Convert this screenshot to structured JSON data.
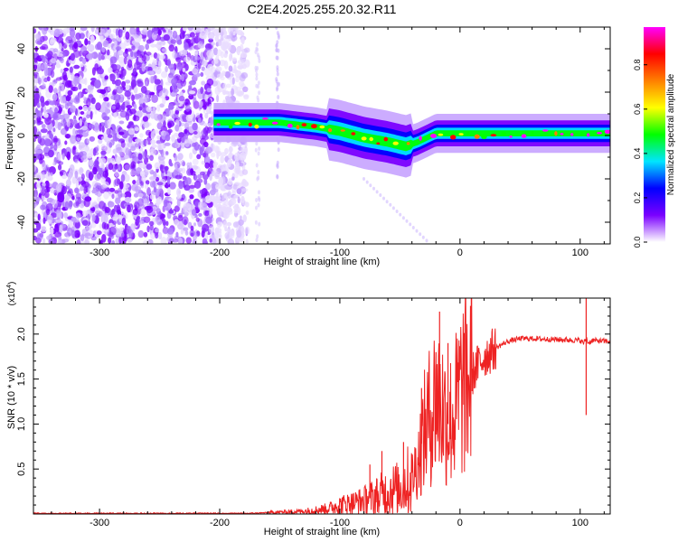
{
  "title": "C2E4.2025.255.20.32.R11",
  "chart_data": [
    {
      "type": "heatmap",
      "xlabel": "Height of straight line (km)",
      "ylabel": "Frequency (Hz)",
      "xlim": [
        -355,
        125
      ],
      "ylim": [
        -50,
        50
      ],
      "xticks": [
        -300,
        -200,
        -100,
        0,
        100
      ],
      "yticks": [
        -40,
        -20,
        0,
        20,
        40
      ],
      "colorbar": {
        "label": "Normalized spectral amplitude",
        "range": [
          0,
          0.97
        ],
        "ticks": [
          "0.0",
          "0.2",
          "0.4",
          "0.6",
          "0.8"
        ],
        "tick_values": [
          0,
          0.2,
          0.4,
          0.6,
          0.8
        ],
        "colormap": [
          "#ffffff",
          "#7a00ff",
          "#0000ff",
          "#00e5ff",
          "#00ff00",
          "#ffff00",
          "#ff8000",
          "#ff0000",
          "#ff00ff"
        ]
      },
      "regions": [
        {
          "name": "noise",
          "x_range": [
            -355,
            -180
          ],
          "freq_range": [
            -50,
            50
          ],
          "amplitude": 0.05
        },
        {
          "name": "signal-band",
          "x": [
            -205,
            -180,
            -150,
            -120,
            -100,
            -80,
            -60,
            -45,
            -35,
            -20,
            0,
            50,
            100,
            125
          ],
          "freq": [
            6,
            6,
            6,
            4,
            2,
            -1,
            -3,
            -5,
            -3,
            1,
            1,
            1,
            1,
            1
          ],
          "peak_amplitude": 0.95
        }
      ]
    },
    {
      "type": "line",
      "xlabel": "Height of straight line (km)",
      "ylabel": "SNR (10 * v/v)",
      "yscale_label": "(x10",
      "yscale_exp": "4",
      "scale": 10000,
      "xlim": [
        -355,
        125
      ],
      "ylim": [
        0,
        2.4
      ],
      "xticks": [
        -300,
        -200,
        -100,
        0,
        100
      ],
      "yticks": [
        "0.5",
        "1.0",
        "1.5",
        "2.0"
      ],
      "ytick_values": [
        0.5,
        1.0,
        1.5,
        2.0
      ],
      "color": "#ee2222",
      "series": [
        {
          "x": [
            -355,
            -300,
            -250,
            -200,
            -170,
            -150,
            -130,
            -110,
            -100,
            -90,
            -80,
            -70,
            -60,
            -50,
            -45,
            -40,
            -35,
            -30,
            -25,
            -20,
            -15,
            -10,
            -5,
            0,
            10,
            20,
            30,
            40,
            50,
            60,
            80,
            100,
            103,
            105,
            107,
            110,
            120,
            125
          ],
          "y": [
            0.0,
            0.0,
            0.0,
            0.0,
            0.01,
            0.02,
            0.03,
            0.06,
            0.1,
            0.12,
            0.15,
            0.2,
            0.25,
            0.3,
            0.35,
            0.4,
            0.6,
            0.9,
            1.1,
            1.3,
            1.2,
            1.0,
            1.1,
            1.35,
            1.55,
            1.75,
            1.85,
            1.92,
            1.95,
            1.95,
            1.94,
            1.93,
            1.9,
            1.95,
            1.9,
            1.93,
            1.92,
            1.92
          ],
          "spikes": [
            [
              -20,
              1.8
            ],
            [
              -17,
              2.25
            ],
            [
              -10,
              1.9
            ],
            [
              -32,
              1.4
            ],
            [
              -47,
              0.8
            ],
            [
              -65,
              0.7
            ],
            [
              -75,
              0.55
            ],
            [
              105,
              2.42
            ],
            [
              105,
              1.1
            ]
          ]
        }
      ]
    }
  ]
}
